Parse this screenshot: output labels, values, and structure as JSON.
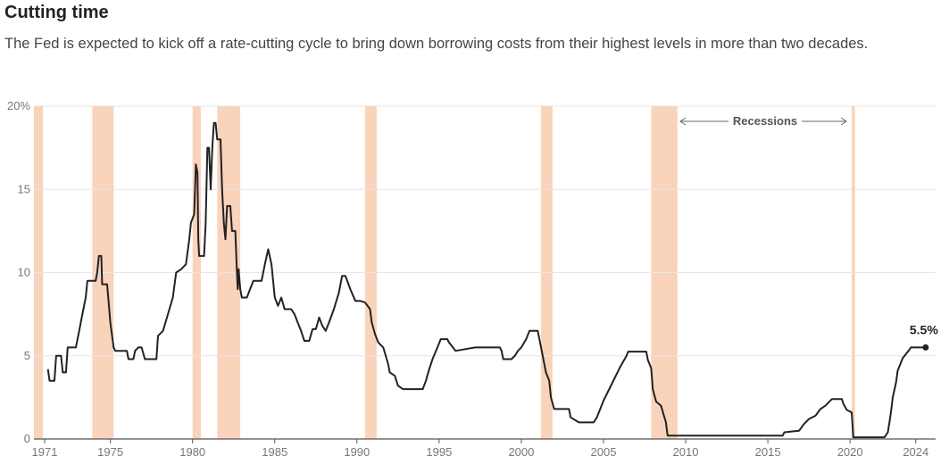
{
  "chart_data": {
    "type": "line",
    "title": "Cutting time",
    "subtitle": "The Fed is expected to kick off a rate-cutting cycle to bring down borrowing costs from their highest levels in more than two decades.",
    "xlabel": "",
    "ylabel": "",
    "xlim": [
      1971.0,
      2025.0
    ],
    "ylim": [
      0,
      20
    ],
    "x_ticks": [
      1971,
      1975,
      1980,
      1985,
      1990,
      1995,
      2000,
      2005,
      2010,
      2015,
      2020,
      2024
    ],
    "x_tick_labels": [
      "1971",
      "1975",
      "1980",
      "1985",
      "1990",
      "1995",
      "2000",
      "2005",
      "2010",
      "2015",
      "2020",
      "2024"
    ],
    "y_ticks": [
      0,
      5,
      10,
      15,
      20
    ],
    "y_tick_labels": [
      "0",
      "5",
      "10",
      "15",
      "20%"
    ],
    "grid": "horizontal",
    "series": [
      {
        "color": "#222222",
        "points": [
          [
            1971.2,
            4.2
          ],
          [
            1971.3,
            3.5
          ],
          [
            1971.6,
            3.5
          ],
          [
            1971.7,
            5.0
          ],
          [
            1972.0,
            5.0
          ],
          [
            1972.1,
            4.0
          ],
          [
            1972.3,
            4.0
          ],
          [
            1972.4,
            5.5
          ],
          [
            1972.9,
            5.5
          ],
          [
            1973.1,
            6.5
          ],
          [
            1973.3,
            7.5
          ],
          [
            1973.5,
            8.5
          ],
          [
            1973.6,
            9.5
          ],
          [
            1974.1,
            9.5
          ],
          [
            1974.2,
            10.0
          ],
          [
            1974.3,
            11.0
          ],
          [
            1974.45,
            11.0
          ],
          [
            1974.5,
            9.3
          ],
          [
            1974.8,
            9.3
          ],
          [
            1975.0,
            7.0
          ],
          [
            1975.2,
            5.5
          ],
          [
            1975.3,
            5.3
          ],
          [
            1976.0,
            5.3
          ],
          [
            1976.1,
            4.8
          ],
          [
            1976.4,
            4.8
          ],
          [
            1976.5,
            5.3
          ],
          [
            1976.7,
            5.5
          ],
          [
            1976.9,
            5.5
          ],
          [
            1977.1,
            4.8
          ],
          [
            1977.8,
            4.8
          ],
          [
            1977.9,
            6.2
          ],
          [
            1978.2,
            6.5
          ],
          [
            1978.5,
            7.5
          ],
          [
            1978.8,
            8.5
          ],
          [
            1979.0,
            10.0
          ],
          [
            1979.3,
            10.2
          ],
          [
            1979.6,
            10.5
          ],
          [
            1979.8,
            12.0
          ],
          [
            1979.9,
            13.0
          ],
          [
            1980.1,
            13.5
          ],
          [
            1980.2,
            16.5
          ],
          [
            1980.3,
            16.0
          ],
          [
            1980.35,
            12.0
          ],
          [
            1980.4,
            11.0
          ],
          [
            1980.7,
            11.0
          ],
          [
            1980.8,
            13.0
          ],
          [
            1980.9,
            17.5
          ],
          [
            1981.0,
            17.5
          ],
          [
            1981.1,
            15.0
          ],
          [
            1981.2,
            17.5
          ],
          [
            1981.3,
            19.0
          ],
          [
            1981.4,
            19.0
          ],
          [
            1981.5,
            18.0
          ],
          [
            1981.7,
            18.0
          ],
          [
            1981.8,
            15.0
          ],
          [
            1981.9,
            13.0
          ],
          [
            1982.0,
            12.0
          ],
          [
            1982.1,
            14.0
          ],
          [
            1982.3,
            14.0
          ],
          [
            1982.4,
            12.5
          ],
          [
            1982.6,
            12.5
          ],
          [
            1982.7,
            10.0
          ],
          [
            1982.75,
            9.0
          ],
          [
            1982.8,
            10.2
          ],
          [
            1982.9,
            9.0
          ],
          [
            1983.0,
            8.5
          ],
          [
            1983.3,
            8.5
          ],
          [
            1983.5,
            9.0
          ],
          [
            1983.7,
            9.5
          ],
          [
            1984.0,
            9.5
          ],
          [
            1984.2,
            9.5
          ],
          [
            1984.4,
            10.5
          ],
          [
            1984.6,
            11.4
          ],
          [
            1984.8,
            10.5
          ],
          [
            1985.0,
            8.5
          ],
          [
            1985.2,
            8.0
          ],
          [
            1985.4,
            8.5
          ],
          [
            1985.6,
            7.8
          ],
          [
            1986.0,
            7.8
          ],
          [
            1986.2,
            7.5
          ],
          [
            1986.4,
            7.0
          ],
          [
            1986.6,
            6.5
          ],
          [
            1986.8,
            5.9
          ],
          [
            1987.1,
            5.9
          ],
          [
            1987.3,
            6.6
          ],
          [
            1987.5,
            6.6
          ],
          [
            1987.7,
            7.3
          ],
          [
            1987.9,
            6.8
          ],
          [
            1988.1,
            6.5
          ],
          [
            1988.3,
            7.0
          ],
          [
            1988.6,
            7.8
          ],
          [
            1988.9,
            8.8
          ],
          [
            1989.1,
            9.8
          ],
          [
            1989.3,
            9.8
          ],
          [
            1989.6,
            9.0
          ],
          [
            1989.9,
            8.3
          ],
          [
            1990.2,
            8.3
          ],
          [
            1990.5,
            8.2
          ],
          [
            1990.8,
            7.8
          ],
          [
            1990.9,
            7.0
          ],
          [
            1991.1,
            6.3
          ],
          [
            1991.3,
            5.8
          ],
          [
            1991.6,
            5.5
          ],
          [
            1991.9,
            4.5
          ],
          [
            1992.0,
            4.0
          ],
          [
            1992.3,
            3.8
          ],
          [
            1992.5,
            3.2
          ],
          [
            1992.8,
            3.0
          ],
          [
            1994.0,
            3.0
          ],
          [
            1994.2,
            3.5
          ],
          [
            1994.4,
            4.2
          ],
          [
            1994.6,
            4.8
          ],
          [
            1994.9,
            5.5
          ],
          [
            1995.1,
            6.0
          ],
          [
            1995.5,
            6.0
          ],
          [
            1995.6,
            5.8
          ],
          [
            1996.0,
            5.3
          ],
          [
            1997.2,
            5.5
          ],
          [
            1998.7,
            5.5
          ],
          [
            1998.8,
            5.3
          ],
          [
            1998.9,
            4.8
          ],
          [
            1999.4,
            4.8
          ],
          [
            1999.6,
            5.0
          ],
          [
            1999.8,
            5.3
          ],
          [
            2000.0,
            5.5
          ],
          [
            2000.3,
            6.0
          ],
          [
            2000.5,
            6.5
          ],
          [
            2001.0,
            6.5
          ],
          [
            2001.1,
            6.0
          ],
          [
            2001.3,
            5.0
          ],
          [
            2001.5,
            4.0
          ],
          [
            2001.7,
            3.5
          ],
          [
            2001.8,
            2.5
          ],
          [
            2002.0,
            1.8
          ],
          [
            2002.9,
            1.8
          ],
          [
            2003.0,
            1.3
          ],
          [
            2003.5,
            1.0
          ],
          [
            2004.4,
            1.0
          ],
          [
            2004.6,
            1.3
          ],
          [
            2005.0,
            2.3
          ],
          [
            2005.5,
            3.3
          ],
          [
            2006.0,
            4.3
          ],
          [
            2006.4,
            5.0
          ],
          [
            2006.5,
            5.25
          ],
          [
            2007.6,
            5.25
          ],
          [
            2007.7,
            4.75
          ],
          [
            2007.9,
            4.25
          ],
          [
            2008.0,
            3.0
          ],
          [
            2008.2,
            2.25
          ],
          [
            2008.5,
            2.0
          ],
          [
            2008.8,
            1.0
          ],
          [
            2008.9,
            0.2
          ],
          [
            2015.9,
            0.2
          ],
          [
            2016.0,
            0.4
          ],
          [
            2016.9,
            0.5
          ],
          [
            2017.2,
            0.9
          ],
          [
            2017.5,
            1.2
          ],
          [
            2017.9,
            1.4
          ],
          [
            2018.2,
            1.8
          ],
          [
            2018.5,
            2.0
          ],
          [
            2018.9,
            2.4
          ],
          [
            2019.5,
            2.4
          ],
          [
            2019.6,
            2.1
          ],
          [
            2019.8,
            1.75
          ],
          [
            2020.1,
            1.6
          ],
          [
            2020.2,
            0.1
          ],
          [
            2022.1,
            0.1
          ],
          [
            2022.3,
            0.4
          ],
          [
            2022.4,
            1.0
          ],
          [
            2022.5,
            1.7
          ],
          [
            2022.6,
            2.5
          ],
          [
            2022.8,
            3.4
          ],
          [
            2022.9,
            4.1
          ],
          [
            2023.1,
            4.6
          ],
          [
            2023.2,
            4.85
          ],
          [
            2023.4,
            5.1
          ],
          [
            2023.6,
            5.35
          ],
          [
            2023.7,
            5.5
          ],
          [
            2024.6,
            5.5
          ]
        ]
      }
    ],
    "recessions": [
      [
        1970.0,
        1970.9
      ],
      [
        1973.9,
        1975.2
      ],
      [
        1980.0,
        1980.5
      ],
      [
        1981.5,
        1982.9
      ],
      [
        1990.5,
        1991.2
      ],
      [
        2001.2,
        2001.9
      ],
      [
        2007.9,
        2009.5
      ],
      [
        2020.1,
        2020.3
      ]
    ],
    "annotation": {
      "text": "Recessions"
    },
    "end_label": {
      "text": "5.5%",
      "x": 2024.6,
      "y": 5.5
    },
    "colors": {
      "line": "#222222",
      "recession": "#fad3bb",
      "grid": "#e6e6e6"
    }
  }
}
